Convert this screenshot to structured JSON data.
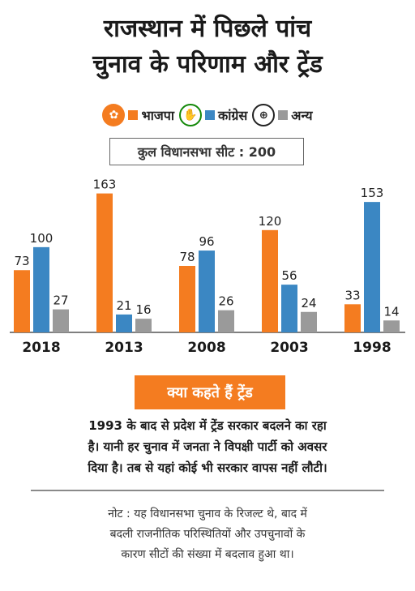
{
  "header": {
    "title_line1": "राजस्थान में पिछले पांच",
    "title_line2": "चुनाव के परिणाम और ट्रेंड"
  },
  "legend": [
    {
      "label": "भाजपा",
      "color": "#f47c20",
      "icon": "bjp-lotus-icon"
    },
    {
      "label": "कांग्रेस",
      "color": "#3b87c3",
      "icon": "congress-hand-icon"
    },
    {
      "label": "अन्य",
      "color": "#9a9a9a",
      "icon": "other-symbol-icon"
    }
  ],
  "seat_info": "कुल विधानसभा सीट : 200",
  "chart_data": {
    "type": "bar",
    "categories": [
      "2018",
      "2013",
      "2008",
      "2003",
      "1998"
    ],
    "series": [
      {
        "name": "भाजपा",
        "color": "#f47c20",
        "values": [
          73,
          163,
          78,
          120,
          33
        ]
      },
      {
        "name": "कांग्रेस",
        "color": "#3b87c3",
        "values": [
          100,
          21,
          96,
          56,
          153
        ]
      },
      {
        "name": "अन्य",
        "color": "#9a9a9a",
        "values": [
          27,
          16,
          26,
          24,
          14
        ]
      }
    ],
    "ylim": [
      0,
      175
    ],
    "grid": false,
    "legend_position": "top"
  },
  "trend": {
    "heading": "क्या कहते हैं ट्रेंड",
    "line1": "1993 के बाद से प्रदेश में ट्रेंड सरकार बदलने का रहा",
    "line2": "है। यानी हर चुनाव में जनता ने विपक्षी पार्टी को अवसर",
    "line3": "दिया है। तब से यहां कोई भी सरकार वापस नहीं लौटी।"
  },
  "note": {
    "line1": "नोट : यह विधानसभा चुनाव के रिजल्ट थे, बाद में",
    "line2": "बदली राजनीतिक परिस्थितियों और उपचुनावों के",
    "line3": "कारण सीटों की संख्या में बदलाव हुआ था।"
  }
}
